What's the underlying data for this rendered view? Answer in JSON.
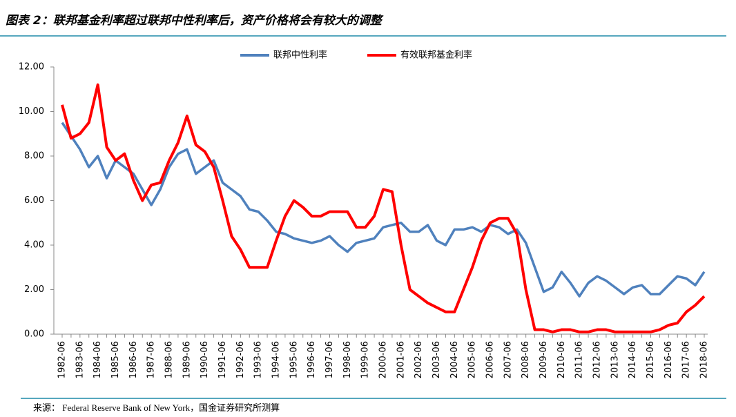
{
  "header": {
    "title": "图表 2：联邦基金利率超过联邦中性利率后，资产价格将会有较大的调整"
  },
  "chart_data": {
    "type": "line",
    "categories": [
      "1982-06",
      null,
      "1983-06",
      null,
      "1984-06",
      null,
      "1985-06",
      null,
      "1986-06",
      null,
      "1987-06",
      null,
      "1988-06",
      null,
      "1989-06",
      null,
      "1990-06",
      null,
      "1991-06",
      null,
      "1992-06",
      null,
      "1993-06",
      null,
      "1994-06",
      null,
      "1995-06",
      null,
      "1996-06",
      null,
      "1997-06",
      null,
      "1998-06",
      null,
      "1999-06",
      null,
      "2000-06",
      null,
      "2001-06",
      null,
      "2002-06",
      null,
      "2003-06",
      null,
      "2004-06",
      null,
      "2005-06",
      null,
      "2006-06",
      null,
      "2007-06",
      null,
      "2008-06",
      null,
      "2009-06",
      null,
      "2010-06",
      null,
      "2011-06",
      null,
      "2012-06",
      null,
      "2013-06",
      null,
      "2014-06",
      null,
      "2015-06",
      null,
      "2016-06",
      null,
      "2017-06",
      null,
      "2018-06"
    ],
    "series": [
      {
        "name": "联邦中性利率",
        "color": "#4f81bd",
        "values": [
          9.5,
          8.9,
          8.3,
          7.5,
          8.0,
          7.0,
          7.8,
          7.5,
          7.2,
          6.5,
          5.8,
          6.5,
          7.5,
          8.1,
          8.3,
          7.2,
          7.5,
          7.8,
          6.8,
          6.5,
          6.2,
          5.6,
          5.5,
          5.1,
          4.6,
          4.5,
          4.3,
          4.2,
          4.1,
          4.2,
          4.4,
          4.0,
          3.7,
          4.1,
          4.2,
          4.3,
          4.8,
          4.9,
          5.0,
          4.6,
          4.6,
          4.9,
          4.2,
          4.0,
          4.7,
          4.7,
          4.8,
          4.6,
          4.9,
          4.8,
          4.5,
          4.7,
          4.1,
          3.0,
          1.9,
          2.1,
          2.8,
          2.3,
          1.7,
          2.3,
          2.6,
          2.4,
          2.1,
          1.8,
          2.1,
          2.2,
          1.8,
          1.8,
          2.2,
          2.6,
          2.5,
          2.2,
          2.8
        ]
      },
      {
        "name": "有效联邦基金利率",
        "color": "#ff0000",
        "values": [
          10.3,
          8.8,
          9.0,
          9.5,
          11.2,
          8.4,
          7.8,
          8.1,
          6.9,
          6.0,
          6.7,
          6.8,
          7.8,
          8.6,
          9.8,
          8.5,
          8.2,
          7.5,
          6.0,
          4.4,
          3.8,
          3.0,
          3.0,
          3.0,
          4.2,
          5.3,
          6.0,
          5.7,
          5.3,
          5.3,
          5.5,
          5.5,
          5.5,
          4.8,
          4.8,
          5.3,
          6.5,
          6.4,
          4.0,
          2.0,
          1.7,
          1.4,
          1.2,
          1.0,
          1.0,
          2.0,
          3.0,
          4.2,
          5.0,
          5.2,
          5.2,
          4.5,
          2.0,
          0.2,
          0.2,
          0.1,
          0.2,
          0.2,
          0.1,
          0.1,
          0.2,
          0.2,
          0.1,
          0.1,
          0.1,
          0.1,
          0.1,
          0.2,
          0.4,
          0.5,
          1.0,
          1.3,
          1.7
        ]
      }
    ],
    "ylim": [
      0,
      12
    ],
    "yticks": [
      {
        "value": 0,
        "label": "0.00"
      },
      {
        "value": 2,
        "label": "2.00"
      },
      {
        "value": 4,
        "label": "4.00"
      },
      {
        "value": 6,
        "label": "6.00"
      },
      {
        "value": 8,
        "label": "8.00"
      },
      {
        "value": 10,
        "label": "10.00"
      },
      {
        "value": 12,
        "label": "12.00"
      }
    ],
    "legend": "top"
  },
  "footer": {
    "source": "来源：  Federal Reserve Bank of  New York，国金证券研究所测算"
  }
}
